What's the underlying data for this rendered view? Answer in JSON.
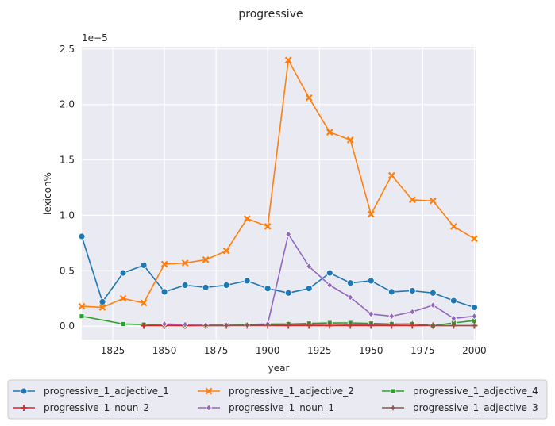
{
  "chart_data": {
    "type": "line",
    "title": "progressive",
    "xlabel": "year",
    "ylabel": "lexicon%",
    "y_scale_label": "1e−5",
    "xlim": [
      1810,
      2001
    ],
    "ylim": [
      -0.12,
      2.52
    ],
    "x_ticks": [
      1825,
      1850,
      1875,
      1900,
      1925,
      1950,
      1975,
      2000
    ],
    "x_tick_labels": [
      "1825",
      "1850",
      "1875",
      "1900",
      "1925",
      "1950",
      "1975",
      "2000"
    ],
    "y_ticks": [
      0.0,
      0.5,
      1.0,
      1.5,
      2.0,
      2.5
    ],
    "y_tick_labels": [
      "0.0",
      "0.5",
      "1.0",
      "1.5",
      "2.0",
      "2.5"
    ],
    "grid": true,
    "legend_placement": "bottom",
    "series": [
      {
        "name": "progressive_1_adjective_1",
        "color": "#1f77b4",
        "marker": "circle",
        "x": [
          1810,
          1820,
          1830,
          1840,
          1850,
          1860,
          1870,
          1880,
          1890,
          1900,
          1910,
          1920,
          1930,
          1940,
          1950,
          1960,
          1970,
          1980,
          1990,
          2000
        ],
        "y": [
          0.81,
          0.22,
          0.48,
          0.55,
          0.31,
          0.37,
          0.35,
          0.37,
          0.41,
          0.34,
          0.3,
          0.34,
          0.48,
          0.39,
          0.41,
          0.31,
          0.32,
          0.3,
          0.23,
          0.17
        ]
      },
      {
        "name": "progressive_1_adjective_2",
        "color": "#ff7f0e",
        "marker": "x",
        "x": [
          1810,
          1820,
          1830,
          1840,
          1850,
          1860,
          1870,
          1880,
          1890,
          1900,
          1910,
          1920,
          1930,
          1940,
          1950,
          1960,
          1970,
          1980,
          1990,
          2000
        ],
        "y": [
          0.18,
          0.17,
          0.25,
          0.21,
          0.56,
          0.57,
          0.6,
          0.68,
          0.97,
          0.9,
          2.4,
          2.06,
          1.75,
          1.68,
          1.01,
          1.36,
          1.14,
          1.13,
          0.9,
          0.79
        ]
      },
      {
        "name": "progressive_1_adjective_4",
        "color": "#2ca02c",
        "marker": "square",
        "x": [
          1810,
          1830,
          1840,
          1850,
          1860,
          1870,
          1880,
          1890,
          1900,
          1910,
          1920,
          1930,
          1940,
          1950,
          1960,
          1970,
          1980,
          1990,
          2000
        ],
        "y": [
          0.09,
          0.02,
          0.015,
          0.01,
          0.005,
          0.005,
          0.01,
          0.015,
          0.02,
          0.02,
          0.025,
          0.03,
          0.03,
          0.025,
          0.02,
          0.02,
          0.005,
          0.03,
          0.05
        ]
      },
      {
        "name": "progressive_1_noun_2",
        "color": "#d62728",
        "marker": "plus",
        "x": [
          1840,
          1850,
          1860,
          1870,
          1880,
          1890,
          1900,
          1910,
          1920,
          1930,
          1940,
          1950,
          1960,
          1970,
          1980,
          1990,
          2000
        ],
        "y": [
          0.005,
          0.005,
          0.005,
          0.005,
          0.005,
          0.005,
          0.005,
          0.005,
          0.005,
          0.005,
          0.005,
          0.005,
          0.005,
          0.005,
          0.005,
          0.005,
          0.005
        ]
      },
      {
        "name": "progressive_1_noun_1",
        "color": "#9467bd",
        "marker": "diamond",
        "x": [
          1850,
          1860,
          1870,
          1880,
          1890,
          1900,
          1910,
          1920,
          1930,
          1940,
          1950,
          1960,
          1970,
          1980,
          1990,
          2000
        ],
        "y": [
          0.02,
          0.015,
          0.01,
          0.01,
          0.01,
          0.02,
          0.83,
          0.54,
          0.37,
          0.26,
          0.11,
          0.09,
          0.13,
          0.19,
          0.07,
          0.09
        ]
      },
      {
        "name": "progressive_1_adjective_3",
        "color": "#8c564b",
        "marker": "star",
        "x": [
          1870,
          1880,
          1890,
          1900,
          1910,
          1920,
          1930,
          1940,
          1950,
          1960,
          1970,
          1980,
          1990,
          2000
        ],
        "y": [
          0.005,
          0.005,
          0.01,
          0.01,
          0.015,
          0.015,
          0.02,
          0.015,
          0.015,
          0.015,
          0.02,
          0.005,
          0.005,
          0.005
        ]
      }
    ]
  }
}
